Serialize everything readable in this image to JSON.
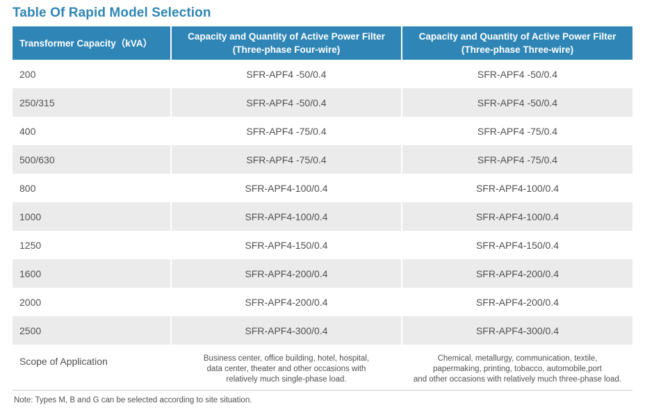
{
  "title": "Table Of Rapid Model Selection",
  "header": {
    "col1": "Transformer Capacity（kVA）",
    "col2_line1": "Capacity and Quantity of Active Power Filter",
    "col2_line2": "(Three-phase Four-wire)",
    "col3_line1": "Capacity and Quantity of Active Power Filter",
    "col3_line2": "(Three-phase Three-wire)"
  },
  "rows": [
    {
      "capacity": "200",
      "four_wire": "SFR-APF4 -50/0.4",
      "three_wire": "SFR-APF4 -50/0.4"
    },
    {
      "capacity": "250/315",
      "four_wire": "SFR-APF4 -50/0.4",
      "three_wire": "SFR-APF4 -50/0.4"
    },
    {
      "capacity": "400",
      "four_wire": "SFR-APF4 -75/0.4",
      "three_wire": "SFR-APF4 -75/0.4"
    },
    {
      "capacity": "500/630",
      "four_wire": "SFR-APF4 -75/0.4",
      "three_wire": "SFR-APF4 -75/0.4"
    },
    {
      "capacity": "800",
      "four_wire": "SFR-APF4-100/0.4",
      "three_wire": "SFR-APF4-100/0.4"
    },
    {
      "capacity": "1000",
      "four_wire": "SFR-APF4-100/0.4",
      "three_wire": "SFR-APF4-100/0.4"
    },
    {
      "capacity": "1250",
      "four_wire": "SFR-APF4-150/0.4",
      "three_wire": "SFR-APF4-150/0.4"
    },
    {
      "capacity": "1600",
      "four_wire": "SFR-APF4-200/0.4",
      "three_wire": "SFR-APF4-200/0.4"
    },
    {
      "capacity": "2000",
      "four_wire": "SFR-APF4-200/0.4",
      "three_wire": "SFR-APF4-200/0.4"
    },
    {
      "capacity": "2500",
      "four_wire": "SFR-APF4-300/0.4",
      "three_wire": "SFR-APF4-300/0.4"
    }
  ],
  "scope": {
    "label": "Scope of Application",
    "four_wire": [
      "Business center, office building, hotel, hospital,",
      "data center, theater and other occasions with",
      "relatively much single-phase load."
    ],
    "three_wire": [
      "Chemical, metallurgy, communication, textile,",
      "papermaking, printing, tobacco, automobile,port",
      "and other occasions with relatively much three-phase load."
    ]
  },
  "note": "Note: Types M, B and G can be selected according to site situation.",
  "colors": {
    "header_bg": "#2f86b6",
    "title": "#2f86b6",
    "shaded_row": "#ebebeb"
  }
}
